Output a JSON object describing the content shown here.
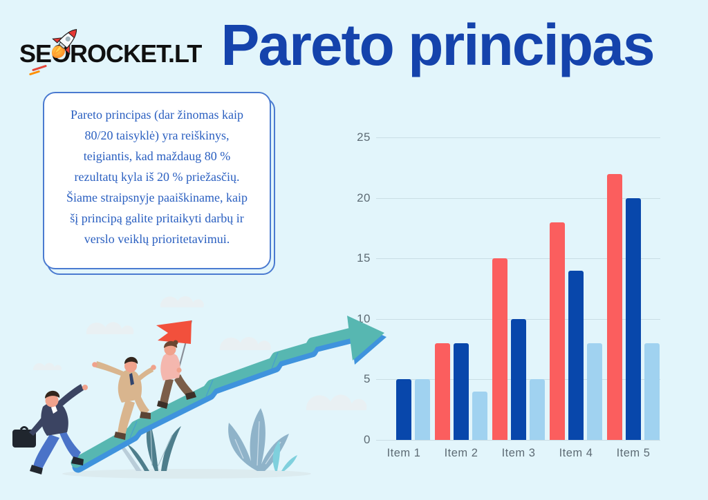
{
  "logo": {
    "text_before_rocket": "SE",
    "rocket_letter": "O",
    "text_after_rocket": "ROCKET.LT"
  },
  "title": "Pareto principas",
  "info_box": {
    "lines": [
      "Pareto principas (dar žinomas kaip",
      "80/20 taisyklė) yra reiškinys,",
      "teigiantis, kad maždaug 80 %",
      "rezultatų kyla iš 20 % priežasčių.",
      "Šiame straipsnyje paaiškiname, kaip",
      "šį principą galite pritaikyti darbų ir",
      "verslo veiklų prioritetavimui."
    ]
  },
  "chart_data": {
    "type": "bar",
    "categories": [
      "Item 1",
      "Item 2",
      "Item 3",
      "Item 4",
      "Item 5"
    ],
    "series": [
      {
        "name": "red",
        "color": "#fb5e5e",
        "values": [
          0,
          8,
          15,
          18,
          22
        ]
      },
      {
        "name": "dark-blue",
        "color": "#0847ab",
        "values": [
          5,
          8,
          10,
          14,
          20
        ]
      },
      {
        "name": "light-blue",
        "color": "#a0d2f0",
        "values": [
          5,
          4,
          5,
          8,
          8
        ]
      }
    ],
    "yticks": [
      0,
      5,
      10,
      15,
      20,
      25
    ],
    "ylim": [
      0,
      25
    ],
    "grid": true,
    "legend": "none",
    "title": "",
    "xlabel": "",
    "ylabel": ""
  },
  "icons": {
    "logo_rocket": "rocket-icon",
    "flag": "red-flag-icon",
    "briefcase": "briefcase-icon"
  },
  "colors": {
    "background": "#e2f5fb",
    "title_blue": "#1543ac",
    "logo_black": "#101010",
    "box_border_blue": "#4a7ad0",
    "box_text_blue": "#2a5fc0",
    "axis_label_gray": "#5d6b74",
    "gridline": "#c9dde4",
    "arrow_teal": "#57b7b1",
    "arrow_blue": "#3f93dd",
    "flag_red": "#f2503c"
  }
}
